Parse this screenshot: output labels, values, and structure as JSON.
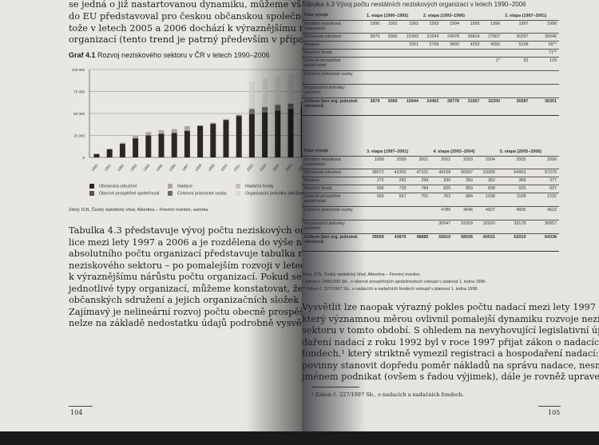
{
  "left_page": {
    "top_lines": [
      "se jedná o již nastartovanou dynamiku, můžeme však konstatovat, že",
      "do EU představoval pro českou občanskou společnost významný impuls,",
      "tože v letech 2005 a 2006 dochází k výraznějšímu nárůstu vzniku neziskových",
      "organizací (tento trend je patrný především v případě občanských sdružení"
    ],
    "figure_label": "Graf 4.1",
    "figure_title": "Rozvoj neziskového sektoru v ČR v letech 1990–2006",
    "source": "Zdroj: ICN, Český statistický úřad, Albertina – Firemní monitor, autorka.",
    "paragraph": [
      "Tabulka 4.3 představuje vývoj počtu neziskových organizací v České repub-",
      "lice mezi lety 1997 a 2006 a je rozdělena do výše naznačených etap. Vedle",
      "absolutního počtu organizací představuje tabulka rovněž dynamiku rozvoje",
      "neziskového sektoru – po pomalejším rozvoji v letech 1997–2000 dochází",
      "k výraznějšímu nárůstu počtu organizací. Pokud se zaměříme podrobněji na",
      "jednotlivé typy organizací, můžeme konstatovat, že dynamika nárůstu počtu",
      "občanských sdružení a jejich organizačních složek kopíruje základní trend.",
      "Zajímavý je nelineární rozvoj počtu obecně prospěšných organizací, který však",
      "nelze na základě nedostatku údajů podrobně vysvětlit."
    ],
    "page_number": "104"
  },
  "chart_data": {
    "type": "bar",
    "stacked": true,
    "title": "Rozvoj neziskového sektoru v ČR v letech 1990–2006",
    "categories": [
      "1990",
      "1991",
      "1992",
      "1993",
      "1994",
      "1995",
      "1996",
      "1997",
      "1998",
      "1999",
      "2000",
      "2001",
      "2002",
      "2003",
      "2004",
      "2005",
      "2006"
    ],
    "ylim": [
      0,
      100000
    ],
    "yticks": [
      "0",
      "25 000",
      "50 000",
      "75 000",
      "100 000"
    ],
    "grid": true,
    "legend_position": "bottom",
    "series": [
      {
        "name": "Občanská sdružení",
        "color": "#2a2628",
        "values": [
          3879,
          9366,
          15393,
          21694,
          24978,
          26814,
          27807,
          30297,
          36046,
          38072,
          42302,
          47101,
          49108,
          50997,
          53306,
          54963,
          57270
        ]
      },
      {
        "name": "Obecně prospěšné společnosti",
        "color": "#555055",
        "values": [
          0,
          0,
          0,
          0,
          0,
          0,
          1,
          52,
          129,
          560,
          557,
          701,
          762,
          884,
          1038,
          1158,
          1232
        ]
      },
      {
        "name": "Nadace",
        "color": "#aaa6a8",
        "values": [
          0,
          0,
          1551,
          2768,
          3800,
          4253,
          4392,
          5238,
          55,
          272,
          282,
          299,
          330,
          350,
          362,
          368,
          377
        ]
      },
      {
        "name": "Církevní právnické osoby",
        "color": "#6d686b",
        "values": [
          0,
          0,
          0,
          0,
          0,
          0,
          0,
          0,
          0,
          0,
          0,
          0,
          4785,
          4946,
          4927,
          4605,
          4522
        ]
      },
      {
        "name": "Nadační fondy",
        "color": "#c4c0c2",
        "values": [
          0,
          0,
          0,
          0,
          0,
          0,
          0,
          0,
          71,
          695,
          735,
          784,
          825,
          859,
          898,
          925,
          937
        ]
      },
      {
        "name": "Organizační jednotky sdružení",
        "color": "#dcd8da",
        "values": [
          0,
          0,
          0,
          0,
          0,
          0,
          0,
          0,
          0,
          0,
          0,
          0,
          30547,
          31509,
          32020,
          33178,
          30957
        ]
      }
    ]
  },
  "right_page": {
    "table_title": "Tabulka 4.3 Vývoj počtu nestátních neziskových organizací v letech 1990–2006",
    "row_labels": [
      "Fáze vývoje",
      "Nestátní nezisková organizace",
      "Občanská sdružení",
      "Nadace",
      "Nadační fondy",
      "Obecně prospěšné společnosti",
      "Církevní právnické osoby",
      "Organizační jednotky sdružení",
      "Celkem (bez org. jednotek sdružení)"
    ],
    "table1": {
      "stages": [
        "1. etapa (1990–1992)",
        "2. etapa (1993–1996)",
        "3. etapa (1997–2001)"
      ],
      "years": [
        "1990",
        "1991",
        "1992",
        "1993",
        "1994",
        "1995",
        "1996",
        "1997",
        "1998"
      ],
      "rows": [
        [
          "3879",
          "9366",
          "15393",
          "21694",
          "24978",
          "26814",
          "27807",
          "30297",
          "36046"
        ],
        [
          "",
          "",
          "1551",
          "2768",
          "3800",
          "4253",
          "4392",
          "5238",
          "55**"
        ],
        [
          "",
          "",
          "",
          "",
          "",
          "",
          "",
          "",
          "71**"
        ],
        [
          "",
          "",
          "",
          "",
          "",
          "",
          "1*",
          "52",
          "129"
        ],
        [
          "",
          "",
          "",
          "",
          "",
          "",
          "",
          "",
          ""
        ],
        [
          "",
          "",
          "",
          "",
          "",
          "",
          "",
          "",
          ""
        ]
      ],
      "total": [
        "3879",
        "9366",
        "16944",
        "24462",
        "28778",
        "31067",
        "32200",
        "35587",
        "36301"
      ]
    },
    "table2": {
      "stages": [
        "3. etapa (1997–2001)",
        "4. etapa (2002–2004)",
        "5. etapa (2005–2006)"
      ],
      "years": [
        "1999",
        "2000",
        "2001",
        "2002",
        "2003",
        "2004",
        "2005",
        "2006"
      ],
      "rows": [
        [
          "38072",
          "42302",
          "47101",
          "49108",
          "50997",
          "53306",
          "54963",
          "57270"
        ],
        [
          "272",
          "282",
          "299",
          "330",
          "350",
          "362",
          "368",
          "377"
        ],
        [
          "695",
          "735",
          "784",
          "825",
          "859",
          "898",
          "925",
          "937"
        ],
        [
          "560",
          "557",
          "701",
          "762",
          "884",
          "1038",
          "1158",
          "1232"
        ],
        [
          "",
          "",
          "",
          "4785",
          "4946",
          "4927",
          "4605",
          "4522"
        ],
        [
          "",
          "",
          "",
          "30547",
          "31509",
          "32020",
          "33178",
          "30957"
        ]
      ],
      "total": [
        "39599",
        "43876",
        "48885",
        "55810",
        "58036",
        "60531",
        "62019",
        "64338"
      ]
    },
    "notes": [
      "Zdroj: ICN, Český statistický úřad, Albertina – Firemní monitor.",
      "* Zákon č. 248/1995 Sb., o obecně prospěšných společnostech vstoupil v platnost 1. ledna 1996.",
      "** Zákon č. 227/1997 Sb., o nadacích a nadačních fondech vstoupil v platnost 1. ledna 1998."
    ],
    "paragraph": [
      "Vysvětlit lze naopak výrazný pokles počtu nadací mezi lety 1997 a 2000,",
      "který významnou měrou ovlivnil pomalejší dynamiku rozvoje neziskového",
      "sektoru v tomto období. S ohledem na nevyhovující legislativní úpravu hospo-",
      "daření nadací z roku 1992 byl v roce 1997 přijat zákon o nadacích a nadačních",
      "fondech,¹ který striktně vymezil registraci a hospodaření nadací: nadace jsou",
      "povinny stanovit dopředu poměr nákladů na správu nadace, nesmějí vlastním",
      "jménem podnikat (ovšem s řadou výjimek), dále je rovněž upravena povinnost"
    ],
    "footnote": "¹ Zákon č. 227/1997 Sb., o nadacích a nadačních fondech.",
    "page_number": "105"
  }
}
